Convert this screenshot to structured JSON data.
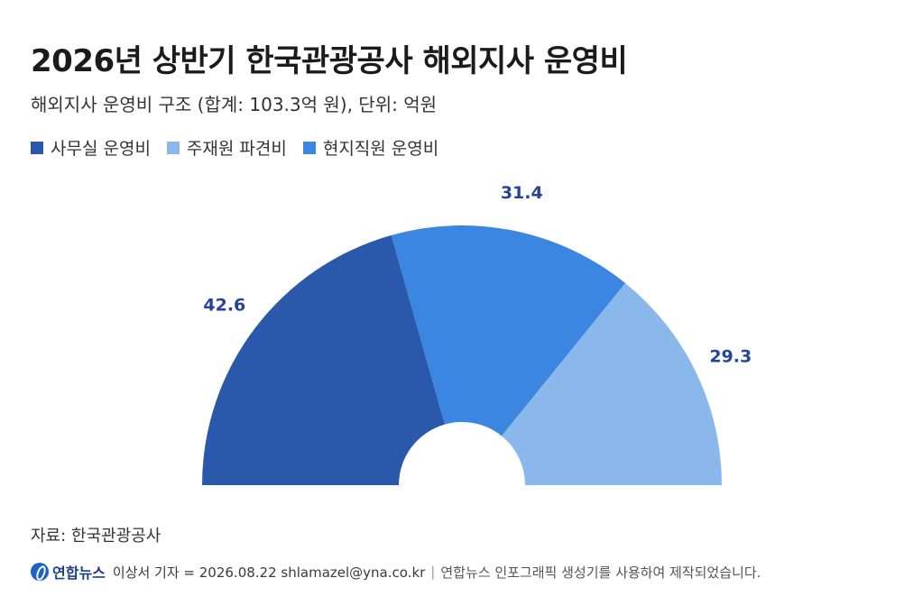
{
  "title": "2026년 상반기 한국관광공사 해외지사 운영비",
  "subtitle": "해외지사 운영비 구조 (합계: 103.3억 원), 단위: 억원",
  "legend": [
    {
      "label": "사무실 운영비",
      "color": "#2a58aa"
    },
    {
      "label": "주재원 파견비",
      "color": "#8bb8ea"
    },
    {
      "label": "현지직원 운영비",
      "color": "#3a86e0"
    }
  ],
  "chart_data": {
    "type": "pie",
    "variant": "half-donut",
    "unit": "억원",
    "total": 103.3,
    "slices": [
      {
        "name": "사무실 운영비",
        "value": 42.6,
        "label": "42.6",
        "color": "#2a58aa"
      },
      {
        "name": "현지직원 운영비",
        "value": 31.4,
        "label": "31.4",
        "color": "#3a86e0"
      },
      {
        "name": "주재원 파견비",
        "value": 29.3,
        "label": "29.3",
        "color": "#8bb8ea"
      }
    ]
  },
  "source": "자료: 한국관광공사",
  "footer": {
    "logo": "연합뉴스",
    "credit": "이상서 기자 = 2026.08.22 shlamazel@yna.co.kr",
    "separator": "|",
    "note": "연합뉴스 인포그래픽 생성기를 사용하여 제작되었습니다."
  }
}
